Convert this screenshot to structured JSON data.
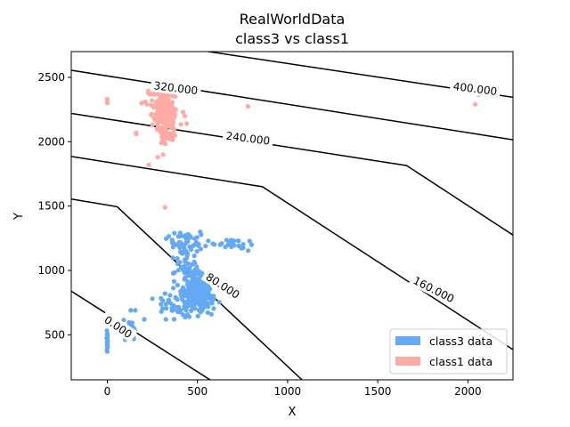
{
  "chart_data": {
    "type": "scatter",
    "title": [
      "RealWorldData",
      "class3 vs  class1"
    ],
    "xlabel": "X",
    "ylabel": "Y",
    "xlim": [
      -200,
      2250
    ],
    "ylim": [
      150,
      2700
    ],
    "xticks": [
      0,
      500,
      1000,
      1500,
      2000
    ],
    "yticks": [
      500,
      1000,
      1500,
      2000,
      2500
    ],
    "legend": {
      "placement": "lower-right",
      "entries": [
        "class3 data",
        "class1 data"
      ]
    },
    "colors": {
      "class3": "#64a9f5",
      "class1": "#ffaaa5"
    },
    "contours": [
      {
        "level": "0.000",
        "points": [
          [
            -200,
            840
          ],
          [
            570,
            150
          ]
        ],
        "label_at": [
          60,
          560
        ],
        "label_angle": 34
      },
      {
        "level": "80.000",
        "points": [
          [
            -200,
            1555
          ],
          [
            55,
            1495
          ],
          [
            1080,
            150
          ]
        ],
        "label_at": [
          640,
          880
        ],
        "label_angle": 33
      },
      {
        "level": "160.000",
        "points": [
          [
            -200,
            1885
          ],
          [
            860,
            1650
          ],
          [
            2250,
            385
          ]
        ],
        "label_at": [
          1810,
          850
        ],
        "label_angle": 27
      },
      {
        "level": "240.000",
        "points": [
          [
            -200,
            2220
          ],
          [
            1660,
            1815
          ],
          [
            2250,
            1275
          ]
        ],
        "label_at": [
          780,
          2025
        ],
        "label_angle": 7
      },
      {
        "level": "320.000",
        "points": [
          [
            -200,
            2555
          ],
          [
            2250,
            2015
          ]
        ],
        "label_at": [
          380,
          2415
        ],
        "label_angle": 7
      },
      {
        "level": "400.000",
        "points": [
          [
            560,
            2700
          ],
          [
            2250,
            2345
          ]
        ],
        "label_at": [
          2040,
          2410
        ],
        "label_angle": 7
      }
    ],
    "series": [
      {
        "name": "class3 data",
        "clusters": [
          {
            "cx": 500,
            "cy": 820,
            "sx": 55,
            "sy": 85,
            "n": 260
          },
          {
            "cx": 440,
            "cy": 1050,
            "sx": 50,
            "sy": 120,
            "n": 70
          },
          {
            "cx": 430,
            "cy": 1240,
            "sx": 60,
            "sy": 40,
            "n": 40
          },
          {
            "cx": 670,
            "cy": 1210,
            "sx": 90,
            "sy": 30,
            "n": 22
          },
          {
            "cx": 380,
            "cy": 720,
            "sx": 60,
            "sy": 60,
            "n": 35
          },
          {
            "cx": 120,
            "cy": 540,
            "sx": 35,
            "sy": 40,
            "n": 22
          },
          {
            "cx": 0,
            "cy": 470,
            "sx": 2,
            "sy": 55,
            "n": 20
          }
        ],
        "points": [
          [
            0,
            370
          ],
          [
            0,
            400
          ],
          [
            0,
            600
          ],
          [
            0,
            580
          ],
          [
            155,
            690
          ],
          [
            130,
            690
          ],
          [
            320,
            820
          ],
          [
            300,
            680
          ],
          [
            325,
            620
          ],
          [
            205,
            620
          ],
          [
            250,
            780
          ],
          [
            560,
            1230
          ],
          [
            545,
            1190
          ],
          [
            515,
            1300
          ],
          [
            800,
            1200
          ]
        ]
      },
      {
        "name": "class1 data",
        "clusters": [
          {
            "cx": 320,
            "cy": 2230,
            "sx": 35,
            "sy": 85,
            "n": 230
          },
          {
            "cx": 300,
            "cy": 2380,
            "sx": 40,
            "sy": 25,
            "n": 40
          },
          {
            "cx": 330,
            "cy": 2060,
            "sx": 30,
            "sy": 50,
            "n": 30
          }
        ],
        "points": [
          [
            0,
            2310
          ],
          [
            0,
            2330
          ],
          [
            0,
            2300
          ],
          [
            160,
            2070
          ],
          [
            160,
            2060
          ],
          [
            190,
            2300
          ],
          [
            210,
            2310
          ],
          [
            220,
            2290
          ],
          [
            230,
            1820
          ],
          [
            310,
            1900
          ],
          [
            280,
            1880
          ],
          [
            320,
            1490
          ],
          [
            420,
            2230
          ],
          [
            430,
            2200
          ],
          [
            440,
            2140
          ],
          [
            780,
            2275
          ],
          [
            2040,
            2290
          ],
          [
            2060,
            2365
          ],
          [
            2060,
            2375
          ]
        ]
      }
    ]
  }
}
